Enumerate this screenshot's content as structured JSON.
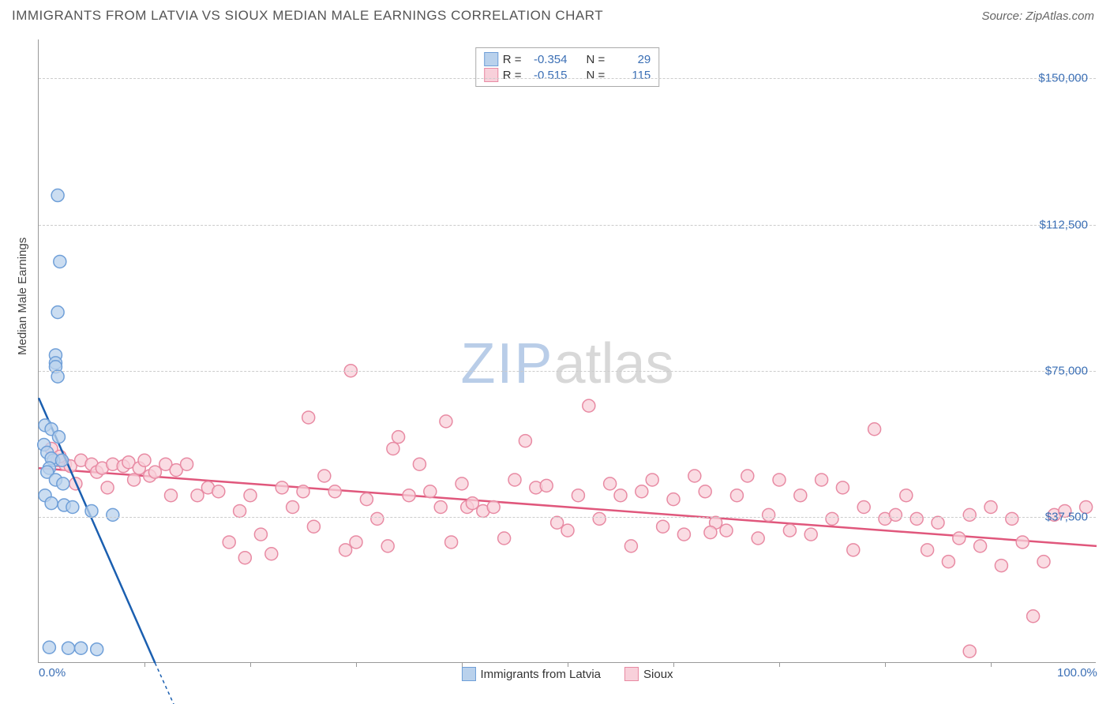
{
  "header": {
    "title": "IMMIGRANTS FROM LATVIA VS SIOUX MEDIAN MALE EARNINGS CORRELATION CHART",
    "source": "Source: ZipAtlas.com"
  },
  "chart": {
    "type": "scatter",
    "ylabel": "Median Male Earnings",
    "xlim": [
      0,
      100
    ],
    "ylim": [
      0,
      160000
    ],
    "yticks": [
      {
        "value": 37500,
        "label": "$37,500"
      },
      {
        "value": 75000,
        "label": "$75,000"
      },
      {
        "value": 112500,
        "label": "$112,500"
      },
      {
        "value": 150000,
        "label": "$150,000"
      }
    ],
    "xticks_minor": [
      10,
      20,
      30,
      40,
      50,
      60,
      70,
      80,
      90
    ],
    "xtick_labels": [
      {
        "value": 0,
        "label": "0.0%"
      },
      {
        "value": 100,
        "label": "100.0%"
      }
    ],
    "grid_color": "#cccccc",
    "axis_color": "#999999",
    "background_color": "#ffffff",
    "marker_radius": 8,
    "marker_stroke_width": 1.5,
    "line_width": 2.5,
    "watermark": {
      "zip": "ZIP",
      "atlas": "atlas"
    }
  },
  "series": [
    {
      "name": "Immigrants from Latvia",
      "color_fill": "#b9d1ec",
      "color_stroke": "#6f9fd8",
      "line_color": "#1b5fb0",
      "R": "-0.354",
      "N": "29",
      "trend": {
        "x1": 0,
        "y1": 68000,
        "x2": 11,
        "y2": 0
      },
      "trend_dashed_ext": {
        "x1": 11,
        "y1": 0,
        "x2": 13,
        "y2": -12000
      },
      "points": [
        [
          1.8,
          120000
        ],
        [
          2.0,
          103000
        ],
        [
          1.8,
          90000
        ],
        [
          1.6,
          79000
        ],
        [
          1.6,
          77000
        ],
        [
          1.6,
          76000
        ],
        [
          1.8,
          73500
        ],
        [
          0.6,
          61000
        ],
        [
          1.2,
          60000
        ],
        [
          0.5,
          56000
        ],
        [
          0.8,
          54000
        ],
        [
          1.4,
          52000
        ],
        [
          1.2,
          52500
        ],
        [
          2.2,
          52000
        ],
        [
          1.0,
          50000
        ],
        [
          0.8,
          49000
        ],
        [
          1.6,
          47000
        ],
        [
          2.3,
          46000
        ],
        [
          0.6,
          43000
        ],
        [
          1.2,
          41000
        ],
        [
          2.4,
          40500
        ],
        [
          3.2,
          40000
        ],
        [
          5.0,
          39000
        ],
        [
          7.0,
          38000
        ],
        [
          1.0,
          4000
        ],
        [
          2.8,
          3800
        ],
        [
          4.0,
          3800
        ],
        [
          5.5,
          3500
        ],
        [
          1.9,
          58000
        ]
      ]
    },
    {
      "name": "Sioux",
      "color_fill": "#f8d0da",
      "color_stroke": "#e88aa3",
      "line_color": "#e0577c",
      "R": "-0.515",
      "N": "115",
      "trend": {
        "x1": 0,
        "y1": 50000,
        "x2": 100,
        "y2": 30000
      },
      "points": [
        [
          1.2,
          55000
        ],
        [
          1.8,
          52000
        ],
        [
          2.5,
          51000
        ],
        [
          2.0,
          53000
        ],
        [
          3.0,
          50500
        ],
        [
          3.5,
          46000
        ],
        [
          4.0,
          52000
        ],
        [
          5.0,
          51000
        ],
        [
          5.5,
          49000
        ],
        [
          6.0,
          50000
        ],
        [
          7.0,
          51000
        ],
        [
          6.5,
          45000
        ],
        [
          8.0,
          50500
        ],
        [
          8.5,
          51500
        ],
        [
          9.0,
          47000
        ],
        [
          9.5,
          50000
        ],
        [
          10.0,
          52000
        ],
        [
          10.5,
          48000
        ],
        [
          11.0,
          49000
        ],
        [
          12.0,
          51000
        ],
        [
          12.5,
          43000
        ],
        [
          13.0,
          49500
        ],
        [
          14.0,
          51000
        ],
        [
          15.0,
          43000
        ],
        [
          16.0,
          45000
        ],
        [
          17.0,
          44000
        ],
        [
          18.0,
          31000
        ],
        [
          19.0,
          39000
        ],
        [
          19.5,
          27000
        ],
        [
          20.0,
          43000
        ],
        [
          21.0,
          33000
        ],
        [
          22.0,
          28000
        ],
        [
          23.0,
          45000
        ],
        [
          24.0,
          40000
        ],
        [
          25.0,
          44000
        ],
        [
          25.5,
          63000
        ],
        [
          26.0,
          35000
        ],
        [
          27.0,
          48000
        ],
        [
          28.0,
          44000
        ],
        [
          29.0,
          29000
        ],
        [
          29.5,
          75000
        ],
        [
          30.0,
          31000
        ],
        [
          31.0,
          42000
        ],
        [
          32.0,
          37000
        ],
        [
          33.0,
          30000
        ],
        [
          33.5,
          55000
        ],
        [
          34.0,
          58000
        ],
        [
          35.0,
          43000
        ],
        [
          36.0,
          51000
        ],
        [
          37.0,
          44000
        ],
        [
          38.0,
          40000
        ],
        [
          38.5,
          62000
        ],
        [
          39.0,
          31000
        ],
        [
          40.0,
          46000
        ],
        [
          40.5,
          40000
        ],
        [
          41.0,
          41000
        ],
        [
          42.0,
          39000
        ],
        [
          43.0,
          40000
        ],
        [
          44.0,
          32000
        ],
        [
          45.0,
          47000
        ],
        [
          46.0,
          57000
        ],
        [
          47.0,
          45000
        ],
        [
          48.0,
          45500
        ],
        [
          49.0,
          36000
        ],
        [
          50.0,
          34000
        ],
        [
          51.0,
          43000
        ],
        [
          52.0,
          66000
        ],
        [
          53.0,
          37000
        ],
        [
          54.0,
          46000
        ],
        [
          55.0,
          43000
        ],
        [
          56.0,
          30000
        ],
        [
          57.0,
          44000
        ],
        [
          58.0,
          47000
        ],
        [
          59.0,
          35000
        ],
        [
          60.0,
          42000
        ],
        [
          61.0,
          33000
        ],
        [
          62.0,
          48000
        ],
        [
          63.0,
          44000
        ],
        [
          64.0,
          36000
        ],
        [
          65.0,
          34000
        ],
        [
          66.0,
          43000
        ],
        [
          67.0,
          48000
        ],
        [
          68.0,
          32000
        ],
        [
          69.0,
          38000
        ],
        [
          70.0,
          47000
        ],
        [
          71.0,
          34000
        ],
        [
          72.0,
          43000
        ],
        [
          73.0,
          33000
        ],
        [
          74.0,
          47000
        ],
        [
          75.0,
          37000
        ],
        [
          76.0,
          45000
        ],
        [
          77.0,
          29000
        ],
        [
          78.0,
          40000
        ],
        [
          79.0,
          60000
        ],
        [
          80.0,
          37000
        ],
        [
          81.0,
          38000
        ],
        [
          82.0,
          43000
        ],
        [
          83.0,
          37000
        ],
        [
          84.0,
          29000
        ],
        [
          85.0,
          36000
        ],
        [
          86.0,
          26000
        ],
        [
          87.0,
          32000
        ],
        [
          88.0,
          38000
        ],
        [
          89.0,
          30000
        ],
        [
          90.0,
          40000
        ],
        [
          91.0,
          25000
        ],
        [
          92.0,
          37000
        ],
        [
          93.0,
          31000
        ],
        [
          94.0,
          12000
        ],
        [
          95.0,
          26000
        ],
        [
          96.0,
          38000
        ],
        [
          97.0,
          39000
        ],
        [
          99.0,
          40000
        ],
        [
          88.0,
          3000
        ],
        [
          63.5,
          33500
        ]
      ]
    }
  ],
  "legend": {
    "r_label": "R =",
    "n_label": "N ="
  }
}
